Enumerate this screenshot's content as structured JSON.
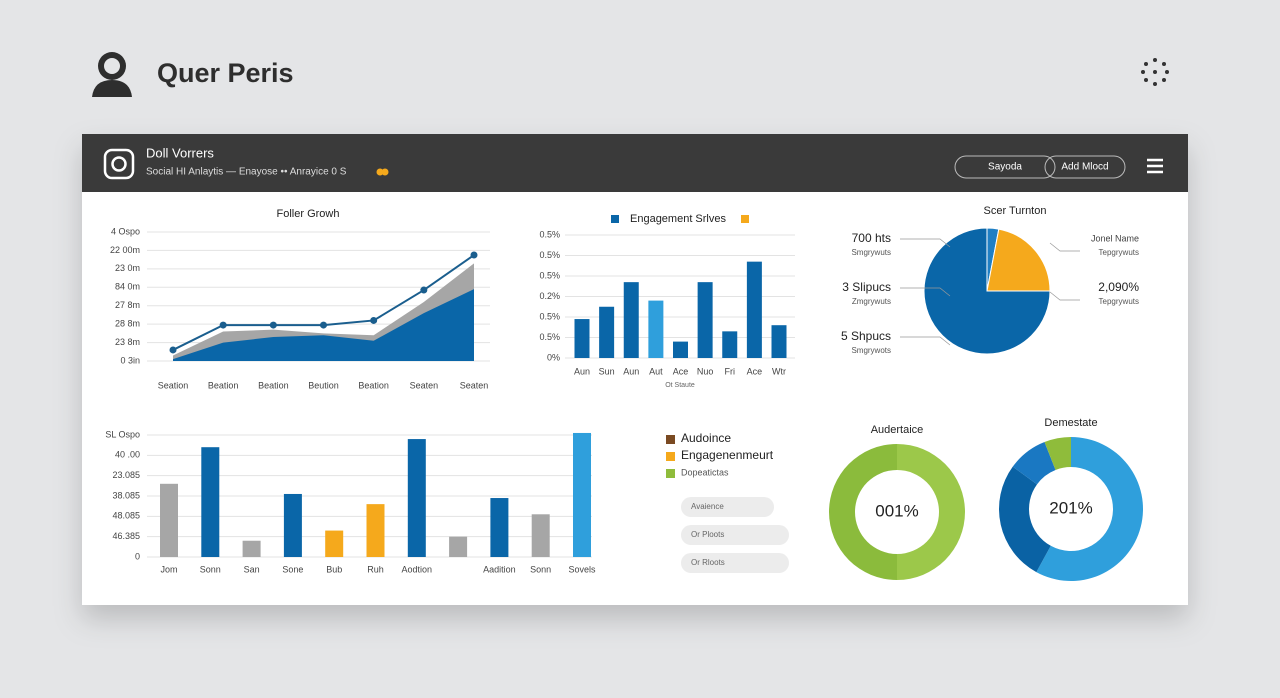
{
  "header": {
    "title": "Quer Peris"
  },
  "panel": {
    "title": "Doll Vorrers",
    "subtitle": "Social HI Anlaytis  —  Enayose ••  Anrayice   0  S",
    "buttons": [
      "Sayoda",
      "Add Mlocd"
    ]
  },
  "legend": {
    "items": [
      {
        "label": "Audoince",
        "color": "#7a4a22"
      },
      {
        "label": "Engagenenmeurt",
        "color": "#f5a91c"
      },
      {
        "label": "Dopeatictas",
        "color": "#8fbc3b"
      }
    ]
  },
  "filters": [
    "Avaience",
    "Or Ploots",
    "Or Rloots"
  ],
  "chart_data": [
    {
      "type": "line",
      "title": "Foller Growh",
      "categories": [
        "Seation",
        "Beation",
        "Beation",
        "Beution",
        "Beation",
        "Seaten",
        "Seaten"
      ],
      "series": [
        {
          "color": "#a6a6a6",
          "fill": true,
          "values": [
            0.3,
            1.6,
            1.7,
            1.5,
            1.4,
            3.2,
            5.3
          ]
        },
        {
          "color": "#0a66a8",
          "fill": true,
          "values": [
            0.1,
            1.0,
            1.3,
            1.4,
            1.1,
            2.6,
            3.9
          ]
        },
        {
          "color": "#1a5e8e",
          "markers": true,
          "values": [
            0.6,
            1.95,
            1.95,
            1.95,
            2.2,
            3.85,
            5.75
          ]
        }
      ],
      "ylim": [
        0,
        7
      ],
      "yticks": [
        {
          "value": 7,
          "label": "4 Ospo"
        },
        {
          "value": 6,
          "label": "22 00m"
        },
        {
          "value": 5,
          "label": "23 0m"
        },
        {
          "value": 4,
          "label": "84 0m"
        },
        {
          "value": 3,
          "label": "27 8m"
        },
        {
          "value": 2,
          "label": "28 8m"
        },
        {
          "value": 1,
          "label": "23 8m"
        },
        {
          "value": 0,
          "label": "0 3in"
        }
      ],
      "grid": true
    },
    {
      "type": "bar",
      "title": "Engagement Srlves",
      "categories": [
        "Aun",
        "Sun",
        "Aun",
        "Aut",
        "Ace",
        "Nuo",
        "Fri",
        "Ace",
        "Wtr"
      ],
      "values": [
        1.9,
        2.5,
        3.7,
        2.8,
        0.8,
        3.7,
        1.3,
        4.7,
        1.6
      ],
      "colors": [
        "#0a66a8",
        "#0a66a8",
        "#0a66a8",
        "#2f9fdc",
        "#0a66a8",
        "#0a66a8",
        "#0a66a8",
        "#0a66a8",
        "#0a66a8"
      ],
      "ylim": [
        0,
        6
      ],
      "yticks": [
        {
          "value": 6,
          "label": "0.5%"
        },
        {
          "value": 5,
          "label": "0.5%"
        },
        {
          "value": 4,
          "label": "0.5%"
        },
        {
          "value": 3,
          "label": "0.2%"
        },
        {
          "value": 2,
          "label": "0.5%"
        },
        {
          "value": 1,
          "label": "0.5%"
        },
        {
          "value": 0,
          "label": "0%"
        }
      ],
      "footnote": "Ot Staute",
      "grid": true
    },
    {
      "type": "pie",
      "title": "Scer Turnton",
      "values": [
        3,
        22,
        75
      ],
      "colors": [
        "#1f7fc4",
        "#f5a91c",
        "#0a66a8"
      ],
      "annotations": [
        {
          "text": "700 hts",
          "sub": "Smgrywuts"
        },
        {
          "text": "3 Slipucs",
          "sub": "Zmgrywuts"
        },
        {
          "text": "5 Shpucs",
          "sub": "Smgrywots"
        },
        {
          "text": "Jonel Name",
          "sub": "Tepgrywuts"
        },
        {
          "text": "2,090%",
          "sub": "Tepgrywuts"
        }
      ]
    },
    {
      "type": "bar",
      "categories": [
        "Jom",
        "Sonn",
        "San",
        "Sone",
        "Bub",
        "Ruh",
        "Aodtion",
        null,
        "Aadition",
        "Sonn",
        "Sovels"
      ],
      "values": [
        3.6,
        5.4,
        0.8,
        3.1,
        1.3,
        2.6,
        5.8,
        1.0,
        2.9,
        2.1,
        6.1
      ],
      "colors": [
        "#a6a6a6",
        "#0a66a8",
        "#a6a6a6",
        "#0a66a8",
        "#f5a91c",
        "#f5a91c",
        "#0a66a8",
        "#a6a6a6",
        "#0a66a8",
        "#a6a6a6",
        "#2f9fdc"
      ],
      "ylim": [
        0,
        6
      ],
      "yticks": [
        {
          "value": 6,
          "label": "SL Ospo"
        },
        {
          "value": 5,
          "label": "40 .00"
        },
        {
          "value": 4,
          "label": "23.085"
        },
        {
          "value": 3,
          "label": "38.085"
        },
        {
          "value": 2,
          "label": "48.085"
        },
        {
          "value": 1,
          "label": "46.385"
        },
        0
      ],
      "grid": true
    },
    {
      "type": "donut",
      "title": "Audertaice",
      "center_label": "001%",
      "values": [
        50,
        50
      ],
      "colors": [
        "#9cc84a",
        "#8bbb3c"
      ]
    },
    {
      "type": "donut",
      "title": "Demestate",
      "center_label": "201%",
      "values": [
        58,
        27,
        9,
        6
      ],
      "colors": [
        "#2f9fdc",
        "#0a62a4",
        "#1a78c2",
        "#8fbc3b"
      ]
    }
  ]
}
